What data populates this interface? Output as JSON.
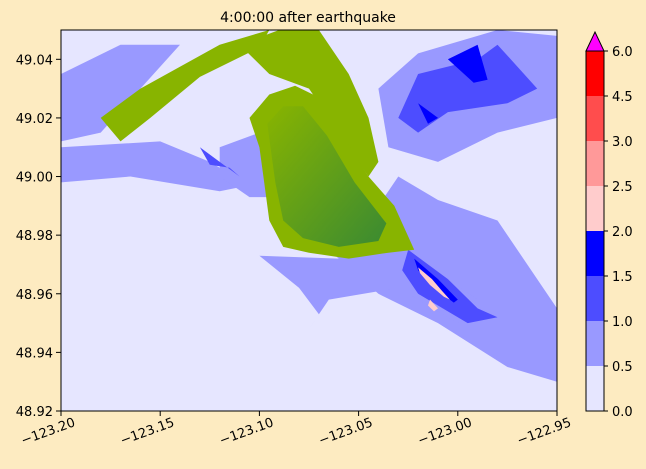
{
  "chart_data": {
    "type": "heatmap",
    "title": "4:00:00 after earthquake",
    "xlabel": "",
    "ylabel": "",
    "xlim": [
      -123.2,
      -122.95
    ],
    "ylim": [
      48.92,
      49.05
    ],
    "x_ticks": [
      {
        "value": -123.2,
        "label": "−123.20"
      },
      {
        "value": -123.15,
        "label": "−123.15"
      },
      {
        "value": -123.1,
        "label": "−123.10"
      },
      {
        "value": -123.05,
        "label": "−123.05"
      },
      {
        "value": -123.0,
        "label": "−123.00"
      },
      {
        "value": -122.95,
        "label": "−122.95"
      }
    ],
    "y_ticks": [
      {
        "value": 48.92,
        "label": "48.92"
      },
      {
        "value": 48.94,
        "label": "48.94"
      },
      {
        "value": 48.96,
        "label": "48.96"
      },
      {
        "value": 48.98,
        "label": "48.98"
      },
      {
        "value": 49.0,
        "label": "49.00"
      },
      {
        "value": 49.02,
        "label": "49.02"
      },
      {
        "value": 49.04,
        "label": "49.04"
      }
    ],
    "colorbar": {
      "levels": [
        0.0,
        0.5,
        1.0,
        1.5,
        2.0,
        2.5,
        3.0,
        4.5,
        6.0
      ],
      "labels": [
        "0.0",
        "0.5",
        "1.0",
        "1.5",
        "2.0",
        "2.5",
        "3.0",
        "4.5",
        "6.0"
      ],
      "colors": [
        "#e6e6ff",
        "#9999ff",
        "#4d4dff",
        "#0000ff",
        "#ffcccc",
        "#ff9999",
        "#ff4d4d",
        "#ff0000"
      ],
      "extend_max_color": "#ff00ff"
    },
    "land_colors": {
      "high": "#88b400",
      "low": "#3a8a32"
    },
    "features": {
      "island": [
        [
          -123.105,
          49.02
        ],
        [
          -123.095,
          49.028
        ],
        [
          -123.082,
          49.031
        ],
        [
          -123.07,
          49.027
        ],
        [
          -123.058,
          49.014
        ],
        [
          -123.045,
          49.0
        ],
        [
          -123.032,
          48.99
        ],
        [
          -123.022,
          48.975
        ],
        [
          -123.035,
          48.974
        ],
        [
          -123.055,
          48.972
        ],
        [
          -123.075,
          48.974
        ],
        [
          -123.088,
          48.976
        ],
        [
          -123.095,
          48.985
        ],
        [
          -123.098,
          49.0
        ],
        [
          -123.1,
          49.01
        ]
      ],
      "island_core": [
        [
          -123.096,
          49.018
        ],
        [
          -123.088,
          49.024
        ],
        [
          -123.078,
          49.024
        ],
        [
          -123.066,
          49.014
        ],
        [
          -123.052,
          48.998
        ],
        [
          -123.036,
          48.984
        ],
        [
          -123.04,
          48.978
        ],
        [
          -123.06,
          48.976
        ],
        [
          -123.078,
          48.979
        ],
        [
          -123.088,
          48.985
        ],
        [
          -123.092,
          48.998
        ]
      ],
      "north_arm": [
        [
          -123.11,
          49.045
        ],
        [
          -123.09,
          49.05
        ],
        [
          -123.07,
          49.05
        ],
        [
          -123.055,
          49.035
        ],
        [
          -123.045,
          49.02
        ],
        [
          -123.04,
          49.005
        ],
        [
          -123.045,
          49.0
        ],
        [
          -123.06,
          49.015
        ],
        [
          -123.075,
          49.03
        ],
        [
          -123.095,
          49.035
        ]
      ],
      "strip": [
        [
          -123.18,
          49.02
        ],
        [
          -123.16,
          49.03
        ],
        [
          -123.12,
          49.045
        ],
        [
          -123.095,
          49.05
        ],
        [
          -123.1,
          49.044
        ],
        [
          -123.13,
          49.034
        ],
        [
          -123.155,
          49.02
        ],
        [
          -123.17,
          49.012
        ]
      ],
      "shallow_zones": [
        [
          [
            -123.2,
            49.035
          ],
          [
            -123.17,
            49.045
          ],
          [
            -123.14,
            49.045
          ],
          [
            -123.18,
            49.015
          ],
          [
            -123.2,
            49.012
          ]
        ],
        [
          [
            -123.2,
            49.01
          ],
          [
            -123.15,
            49.012
          ],
          [
            -123.125,
            49.005
          ],
          [
            -123.105,
            48.997
          ],
          [
            -123.12,
            48.995
          ],
          [
            -123.165,
            49.0
          ],
          [
            -123.2,
            48.998
          ]
        ],
        [
          [
            -123.12,
            49.01
          ],
          [
            -123.1,
            49.015
          ],
          [
            -123.092,
            48.993
          ],
          [
            -123.105,
            48.993
          ],
          [
            -123.12,
            49.0
          ]
        ],
        [
          [
            -123.04,
            49.03
          ],
          [
            -123.02,
            49.042
          ],
          [
            -122.98,
            49.05
          ],
          [
            -122.95,
            49.048
          ],
          [
            -122.95,
            49.02
          ],
          [
            -122.98,
            49.015
          ],
          [
            -123.01,
            49.005
          ],
          [
            -123.035,
            49.01
          ]
        ],
        [
          [
            -123.03,
            49.0
          ],
          [
            -123.01,
            48.992
          ],
          [
            -122.98,
            48.985
          ],
          [
            -122.96,
            48.965
          ],
          [
            -122.95,
            48.955
          ],
          [
            -122.95,
            48.93
          ],
          [
            -122.975,
            48.935
          ],
          [
            -123.01,
            48.95
          ],
          [
            -123.04,
            48.96
          ],
          [
            -123.065,
            48.975
          ],
          [
            -123.045,
            48.985
          ]
        ],
        [
          [
            -123.1,
            48.973
          ],
          [
            -123.08,
            48.962
          ],
          [
            -123.07,
            48.953
          ],
          [
            -123.075,
            48.948
          ],
          [
            -123.065,
            48.958
          ],
          [
            -123.03,
            48.962
          ],
          [
            -123.0,
            48.95
          ],
          [
            -122.99,
            48.958
          ],
          [
            -123.02,
            48.972
          ],
          [
            -123.06,
            48.972
          ]
        ]
      ],
      "mid_zones": [
        [
          [
            -123.025,
            48.975
          ],
          [
            -123.005,
            48.965
          ],
          [
            -122.99,
            48.955
          ],
          [
            -122.98,
            48.952
          ],
          [
            -122.995,
            48.95
          ],
          [
            -123.02,
            48.96
          ],
          [
            -123.028,
            48.968
          ]
        ],
        [
          [
            -123.02,
            49.035
          ],
          [
            -122.99,
            49.04
          ],
          [
            -122.98,
            49.045
          ],
          [
            -122.96,
            49.03
          ],
          [
            -122.975,
            49.025
          ],
          [
            -123.005,
            49.022
          ],
          [
            -123.02,
            49.015
          ],
          [
            -123.03,
            49.02
          ]
        ],
        [
          [
            -123.13,
            49.01
          ],
          [
            -123.12,
            49.005
          ],
          [
            -123.11,
            49.0
          ],
          [
            -123.115,
            49.003
          ],
          [
            -123.125,
            49.004
          ]
        ]
      ],
      "deep_zones": [
        [
          [
            -123.022,
            48.972
          ],
          [
            -123.01,
            48.965
          ],
          [
            -123.0,
            48.958
          ],
          [
            -123.002,
            48.957
          ],
          [
            -123.012,
            48.962
          ],
          [
            -123.02,
            48.968
          ]
        ],
        [
          [
            -123.005,
            49.04
          ],
          [
            -122.99,
            49.045
          ],
          [
            -122.985,
            49.033
          ],
          [
            -122.992,
            49.032
          ]
        ],
        [
          [
            -123.02,
            49.025
          ],
          [
            -123.01,
            49.02
          ],
          [
            -123.015,
            49.018
          ]
        ]
      ],
      "pink_zones": [
        [
          [
            -123.02,
            48.969
          ],
          [
            -123.013,
            48.965
          ],
          [
            -123.008,
            48.961
          ],
          [
            -123.004,
            48.958
          ],
          [
            -123.007,
            48.959
          ],
          [
            -123.014,
            48.963
          ],
          [
            -123.019,
            48.967
          ]
        ],
        [
          [
            -123.014,
            48.958
          ],
          [
            -123.01,
            48.955
          ],
          [
            -123.012,
            48.954
          ],
          [
            -123.015,
            48.956
          ]
        ]
      ]
    }
  }
}
